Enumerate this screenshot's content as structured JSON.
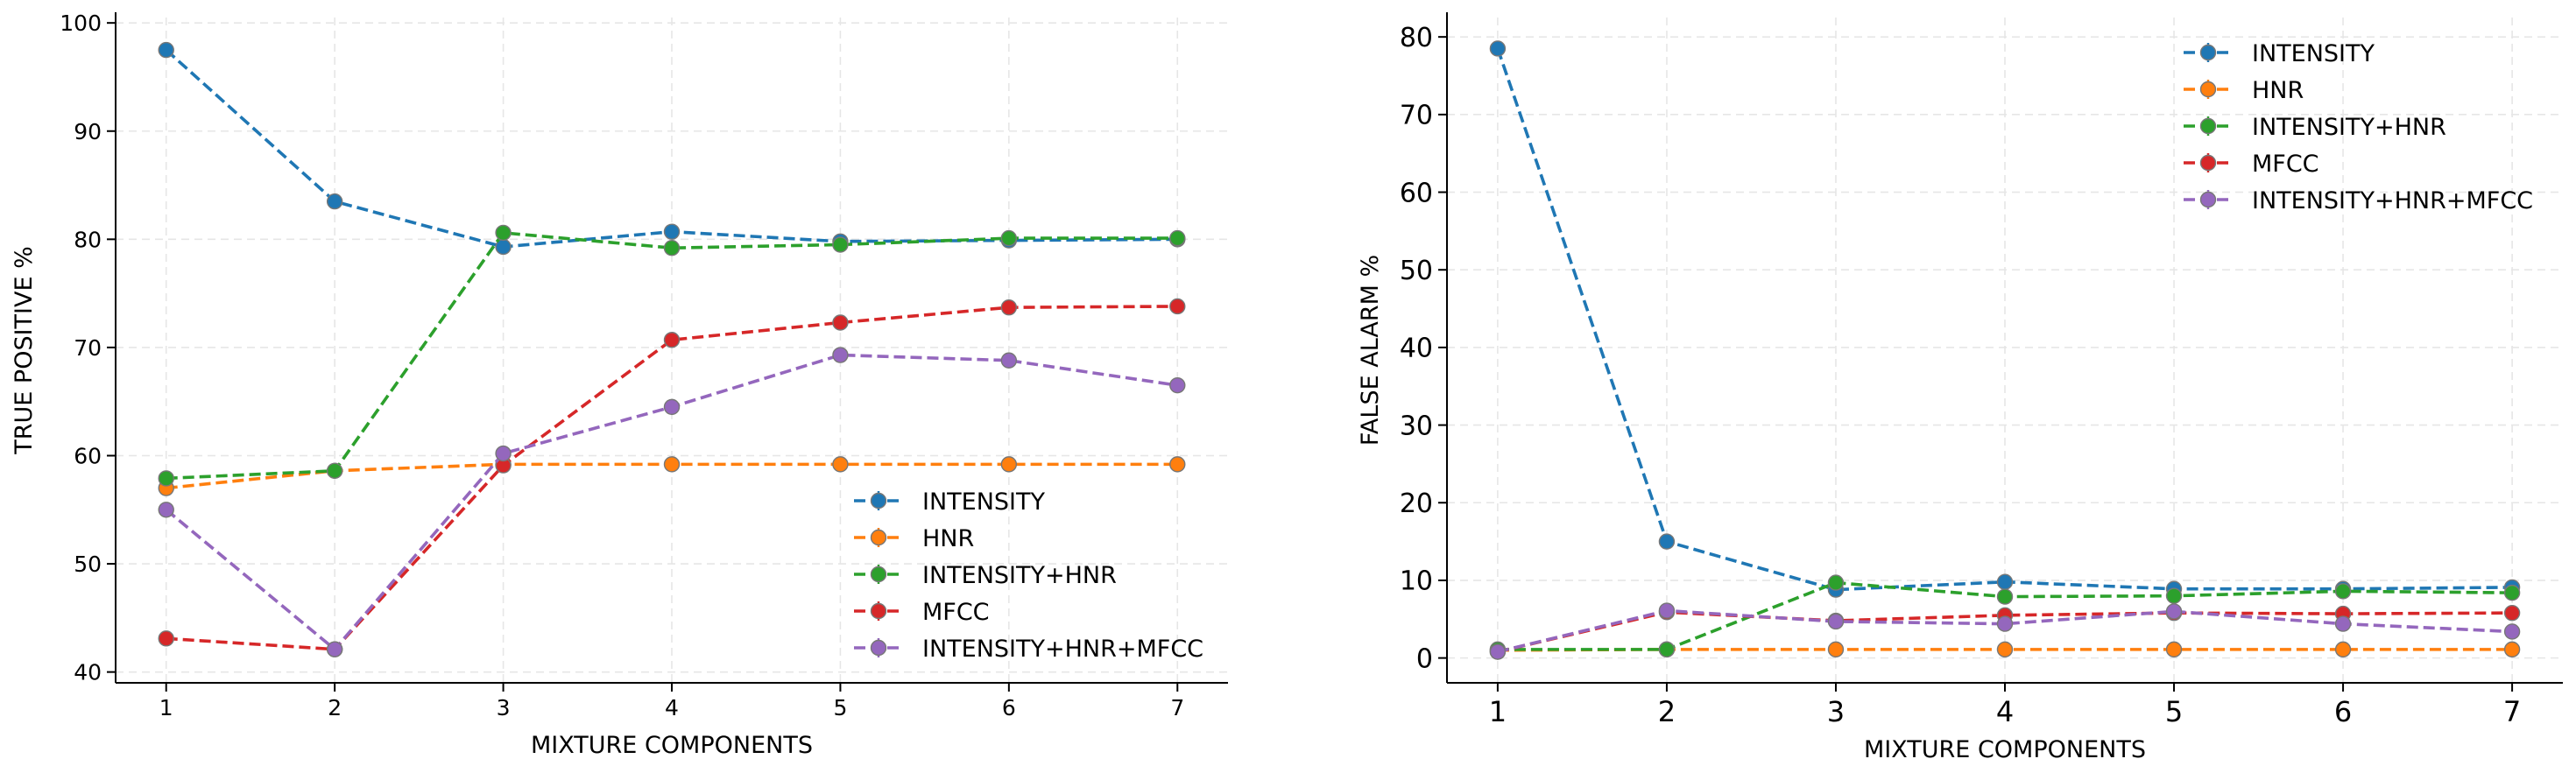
{
  "chart_data": [
    {
      "type": "line",
      "xlabel": "MIXTURE COMPONENTS",
      "ylabel": "TRUE POSITIVE %",
      "x": [
        1,
        2,
        3,
        4,
        5,
        6,
        7
      ],
      "xticks": [
        "1",
        "2",
        "3",
        "4",
        "5",
        "6",
        "7"
      ],
      "yticks": [
        "40",
        "50",
        "60",
        "70",
        "80",
        "90",
        "100"
      ],
      "xlim": [
        0.7,
        7.3
      ],
      "ylim": [
        39,
        100.5
      ],
      "grid": true,
      "legend_position": "lower-right",
      "series": [
        {
          "name": "INTENSITY",
          "color": "#1f77b4",
          "values": [
            97.5,
            83.5,
            79.3,
            80.7,
            79.8,
            79.9,
            80.0
          ]
        },
        {
          "name": "HNR",
          "color": "#ff7f0e",
          "values": [
            57.0,
            58.6,
            59.2,
            59.2,
            59.2,
            59.2,
            59.2
          ]
        },
        {
          "name": "INTENSITY+HNR",
          "color": "#2ca02c",
          "values": [
            57.9,
            58.6,
            80.6,
            79.2,
            79.5,
            80.1,
            80.1
          ]
        },
        {
          "name": "MFCC",
          "color": "#d62728",
          "values": [
            43.1,
            42.1,
            59.1,
            70.7,
            72.3,
            73.7,
            73.8
          ]
        },
        {
          "name": "INTENSITY+HNR+MFCC",
          "color": "#9467bd",
          "values": [
            55.0,
            42.1,
            60.2,
            64.5,
            69.3,
            68.8,
            66.5
          ]
        }
      ]
    },
    {
      "type": "line",
      "xlabel": "MIXTURE COMPONENTS",
      "ylabel": "FALSE ALARM %",
      "x": [
        1,
        2,
        3,
        4,
        5,
        6,
        7
      ],
      "xticks": [
        "1",
        "2",
        "3",
        "4",
        "5",
        "6",
        "7"
      ],
      "yticks": [
        "0",
        "10",
        "20",
        "30",
        "40",
        "50",
        "60",
        "70",
        "80"
      ],
      "xlim": [
        0.7,
        7.3
      ],
      "ylim": [
        -3.2,
        82.5
      ],
      "grid": true,
      "legend_position": "upper-right",
      "series": [
        {
          "name": "INTENSITY",
          "color": "#1f77b4",
          "values": [
            78.5,
            15.0,
            8.8,
            9.8,
            8.9,
            8.9,
            9.1
          ]
        },
        {
          "name": "HNR",
          "color": "#ff7f0e",
          "values": [
            1.0,
            1.1,
            1.1,
            1.1,
            1.1,
            1.1,
            1.1
          ]
        },
        {
          "name": "INTENSITY+HNR",
          "color": "#2ca02c",
          "values": [
            1.1,
            1.1,
            9.7,
            7.9,
            8.0,
            8.6,
            8.4
          ]
        },
        {
          "name": "MFCC",
          "color": "#d62728",
          "values": [
            0.8,
            5.9,
            4.8,
            5.5,
            5.8,
            5.7,
            5.8
          ]
        },
        {
          "name": "INTENSITY+HNR+MFCC",
          "color": "#9467bd",
          "values": [
            0.8,
            6.1,
            4.7,
            4.4,
            6.0,
            4.4,
            3.4
          ]
        }
      ]
    }
  ]
}
